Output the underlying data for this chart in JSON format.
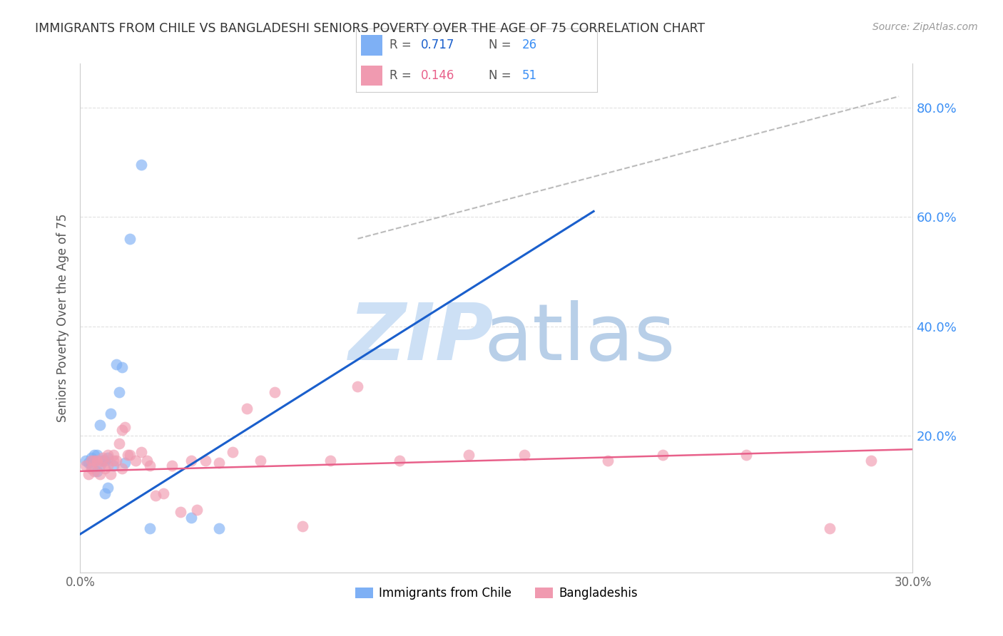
{
  "title": "IMMIGRANTS FROM CHILE VS BANGLADESHI SENIORS POVERTY OVER THE AGE OF 75 CORRELATION CHART",
  "source": "Source: ZipAtlas.com",
  "ylabel": "Seniors Poverty Over the Age of 75",
  "ytick_labels": [
    "20.0%",
    "40.0%",
    "60.0%",
    "80.0%"
  ],
  "ytick_values": [
    0.2,
    0.4,
    0.6,
    0.8
  ],
  "xmin": 0.0,
  "xmax": 0.3,
  "ymin": -0.05,
  "ymax": 0.88,
  "legend_r1": "R = 0.717",
  "legend_n1": "N = 26",
  "legend_r2": "R = 0.146",
  "legend_n2": "N = 51",
  "legend_label1": "Immigrants from Chile",
  "legend_label2": "Bangladeshis",
  "chile_x": [
    0.002,
    0.003,
    0.004,
    0.004,
    0.005,
    0.005,
    0.006,
    0.006,
    0.007,
    0.007,
    0.008,
    0.009,
    0.009,
    0.01,
    0.01,
    0.011,
    0.012,
    0.013,
    0.014,
    0.015,
    0.016,
    0.018,
    0.022,
    0.025,
    0.04,
    0.05
  ],
  "chile_y": [
    0.155,
    0.15,
    0.145,
    0.16,
    0.155,
    0.165,
    0.135,
    0.165,
    0.145,
    0.22,
    0.155,
    0.095,
    0.155,
    0.105,
    0.16,
    0.24,
    0.145,
    0.33,
    0.28,
    0.325,
    0.15,
    0.56,
    0.695,
    0.03,
    0.05,
    0.03
  ],
  "bangla_x": [
    0.002,
    0.003,
    0.004,
    0.004,
    0.005,
    0.005,
    0.006,
    0.006,
    0.007,
    0.008,
    0.008,
    0.009,
    0.01,
    0.01,
    0.011,
    0.012,
    0.012,
    0.013,
    0.014,
    0.015,
    0.015,
    0.016,
    0.017,
    0.018,
    0.02,
    0.022,
    0.024,
    0.025,
    0.027,
    0.03,
    0.033,
    0.036,
    0.04,
    0.042,
    0.045,
    0.05,
    0.055,
    0.06,
    0.065,
    0.07,
    0.08,
    0.09,
    0.1,
    0.115,
    0.14,
    0.16,
    0.19,
    0.21,
    0.24,
    0.27,
    0.285
  ],
  "bangla_y": [
    0.145,
    0.13,
    0.155,
    0.14,
    0.155,
    0.135,
    0.15,
    0.155,
    0.13,
    0.155,
    0.16,
    0.14,
    0.145,
    0.165,
    0.13,
    0.155,
    0.165,
    0.155,
    0.185,
    0.14,
    0.21,
    0.215,
    0.165,
    0.165,
    0.155,
    0.17,
    0.155,
    0.145,
    0.09,
    0.095,
    0.145,
    0.06,
    0.155,
    0.065,
    0.155,
    0.15,
    0.17,
    0.25,
    0.155,
    0.28,
    0.035,
    0.155,
    0.29,
    0.155,
    0.165,
    0.165,
    0.155,
    0.165,
    0.165,
    0.03,
    0.155
  ],
  "chile_line_x": [
    0.0,
    0.185
  ],
  "chile_line_y": [
    0.02,
    0.61
  ],
  "bangla_line_x": [
    0.0,
    0.3
  ],
  "bangla_line_y": [
    0.135,
    0.175
  ],
  "dashed_line_x": [
    0.1,
    0.295
  ],
  "dashed_line_y": [
    0.56,
    0.82
  ],
  "color_chile": "#7eb0f5",
  "color_bangla": "#f09ab0",
  "color_chile_line": "#1a5fcc",
  "color_bangla_line": "#e8608a",
  "color_dashed": "#bbbbbb",
  "color_ytick": "#3b8ff5",
  "color_grid": "#e0e0e0",
  "watermark_zip_color": "#cde0f5",
  "watermark_atlas_color": "#b8cfe8",
  "title_color": "#333333",
  "source_color": "#999999"
}
